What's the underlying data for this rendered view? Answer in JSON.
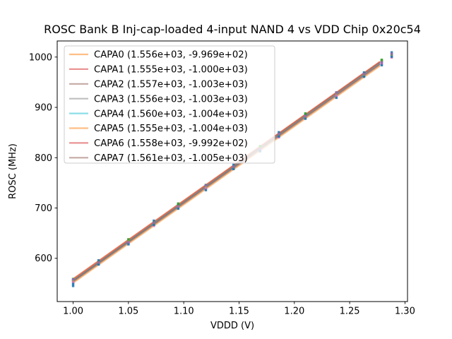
{
  "title": "ROSC Bank B Inj-cap-loaded 4-input NAND 4 vs VDD Chip 0x20c54",
  "chart_data": {
    "type": "scatter",
    "subtype": "scatter-with-linear-fit-lines",
    "title": "ROSC Bank B Inj-cap-loaded 4-input NAND 4 vs VDD Chip 0x20c54",
    "xlabel": "VDDD (V)",
    "ylabel": "ROSC (MHz)",
    "xlim": [
      0.9856,
      1.3023
    ],
    "ylim": [
      514,
      1032
    ],
    "grid": false,
    "legend_position": "upper left",
    "x_ticks": [
      {
        "value": 1.0,
        "label": "1.00"
      },
      {
        "value": 1.05,
        "label": "1.05"
      },
      {
        "value": 1.1,
        "label": "1.10"
      },
      {
        "value": 1.15,
        "label": "1.15"
      },
      {
        "value": 1.2,
        "label": "1.20"
      },
      {
        "value": 1.25,
        "label": "1.25"
      },
      {
        "value": 1.3,
        "label": "1.30"
      }
    ],
    "y_ticks": [
      {
        "value": 600,
        "label": "600"
      },
      {
        "value": 700,
        "label": "700"
      },
      {
        "value": 800,
        "label": "800"
      },
      {
        "value": 900,
        "label": "900"
      },
      {
        "value": 1000,
        "label": "1000"
      }
    ],
    "x": [
      1.0,
      1.023,
      1.05,
      1.073,
      1.095,
      1.12,
      1.145,
      1.169,
      1.186,
      1.21,
      1.238,
      1.263,
      1.279,
      1.288
    ],
    "fit_line_x_range": [
      1.0,
      1.277
    ],
    "line_alpha": 0.5,
    "marker_alpha": 0.9,
    "series": [
      {
        "name": "CAPA0",
        "legend_label": "CAPA0 (1.556e+03, -9.969e+02)",
        "fit_slope": 1556.0,
        "fit_intercept": -996.9,
        "line_color": "#ff7f0e",
        "marker_color": "#1f77b4"
      },
      {
        "name": "CAPA1",
        "legend_label": "CAPA1 (1.555e+03, -1.000e+03)",
        "fit_slope": 1555.0,
        "fit_intercept": -1000.0,
        "line_color": "#d62728",
        "marker_color": "#2ca02c"
      },
      {
        "name": "CAPA2",
        "legend_label": "CAPA2 (1.557e+03, -1.003e+03)",
        "fit_slope": 1557.0,
        "fit_intercept": -1003.0,
        "line_color": "#8c564b",
        "marker_color": "#9467bd"
      },
      {
        "name": "CAPA3",
        "legend_label": "CAPA3 (1.556e+03, -1.003e+03)",
        "fit_slope": 1556.0,
        "fit_intercept": -1003.0,
        "line_color": "#7f7f7f",
        "marker_color": "#e377c2"
      },
      {
        "name": "CAPA4",
        "legend_label": "CAPA4 (1.560e+03, -1.004e+03)",
        "fit_slope": 1560.0,
        "fit_intercept": -1004.0,
        "line_color": "#17becf",
        "marker_color": "#bcbd22"
      },
      {
        "name": "CAPA5",
        "legend_label": "CAPA5 (1.555e+03, -1.004e+03)",
        "fit_slope": 1555.0,
        "fit_intercept": -1004.0,
        "line_color": "#ff7f0e",
        "marker_color": "#1f77b4"
      },
      {
        "name": "CAPA6",
        "legend_label": "CAPA6 (1.558e+03, -9.992e+02)",
        "fit_slope": 1558.0,
        "fit_intercept": -999.2,
        "line_color": "#d62728",
        "marker_color": "#2ca02c"
      },
      {
        "name": "CAPA7",
        "legend_label": "CAPA7 (1.561e+03, -1.005e+03)",
        "fit_slope": 1561.0,
        "fit_intercept": -1005.0,
        "line_color": "#8c564b",
        "marker_color": "#9467bd"
      }
    ],
    "outliers": [
      {
        "series_index": 0,
        "point_index": 0,
        "dy": -12
      }
    ],
    "colors": {
      "spine": "#000000",
      "legend_border": "#cccccc",
      "legend_background": "#ffffff",
      "text": "#000000"
    }
  }
}
